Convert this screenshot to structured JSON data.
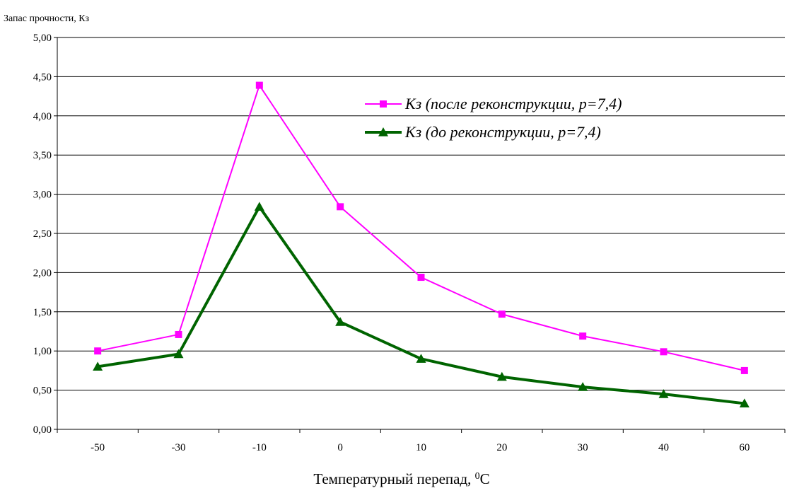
{
  "chart_data": {
    "type": "line",
    "title": "",
    "ylabel": "Запас прочности, Кз",
    "xlabel": "Температурный перепад, ",
    "xlabel_sup": "0",
    "xlabel_unit": "С",
    "categories": [
      "-50",
      "-30",
      "-10",
      "0",
      "10",
      "20",
      "30",
      "40",
      "60"
    ],
    "y_ticks": [
      "0,00",
      "0,50",
      "1,00",
      "1,50",
      "2,00",
      "2,50",
      "3,00",
      "3,50",
      "4,00",
      "4,50",
      "5,00"
    ],
    "ylim": [
      0,
      5
    ],
    "grid": true,
    "legend_position": "top-right",
    "series": [
      {
        "name": "Кз (после реконструкции, р=7,4)",
        "color": "#ff00ff",
        "marker": "square",
        "values": [
          1.0,
          1.21,
          4.39,
          2.84,
          1.94,
          1.47,
          1.19,
          0.99,
          0.75
        ]
      },
      {
        "name": "Кз (до реконструкции, р=7,4)",
        "color": "#006400",
        "marker": "triangle",
        "values": [
          0.8,
          0.96,
          2.84,
          1.37,
          0.9,
          0.67,
          0.54,
          0.45,
          0.33
        ]
      }
    ]
  }
}
